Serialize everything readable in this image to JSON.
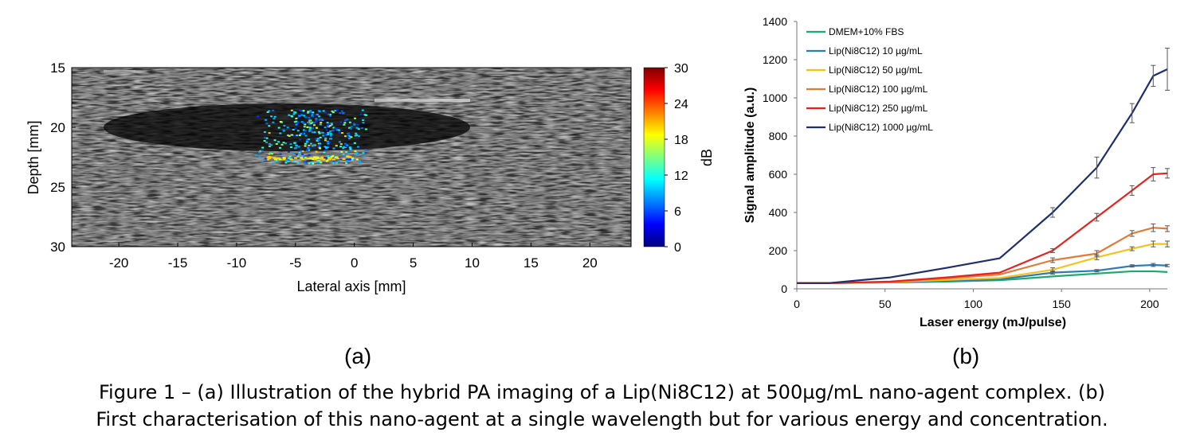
{
  "figure": {
    "panel_a_label": "(a)",
    "panel_b_label": "(b)",
    "caption_line1": "Figure 1 – (a) Illustration of the hybrid PA imaging of a Lip(Ni8C12) at 500µg/mL nano-agent complex. (b)",
    "caption_line2": "First characterisation of this nano-agent at a single wavelength but for various energy and concentration."
  },
  "chart_data": [
    {
      "type": "heatmap",
      "xlabel": "Lateral axis [mm]",
      "ylabel": "Depth [mm]",
      "xlim": [
        -24,
        23.5
      ],
      "ylim": [
        30,
        15
      ],
      "xticks": [
        -20,
        -15,
        -10,
        -5,
        0,
        5,
        10,
        15,
        20
      ],
      "yticks": [
        15,
        20,
        25,
        30
      ],
      "colorbar": {
        "label": "dB",
        "ticks": [
          0,
          6,
          12,
          18,
          24,
          30
        ],
        "range": [
          0,
          30
        ]
      },
      "background": "grayscale ultrasound B-mode speckle",
      "hotspot": {
        "x_range": [
          -8.5,
          1
        ],
        "y_range": [
          18.5,
          23
        ],
        "peak_db": 21
      }
    },
    {
      "type": "line",
      "xlabel": "Laser energy (mJ/pulse)",
      "ylabel": "Signal amplitude (a.u.)",
      "xlim": [
        0,
        210
      ],
      "ylim": [
        0,
        1400
      ],
      "xticks": [
        0,
        50,
        100,
        150,
        200
      ],
      "yticks": [
        0,
        200,
        400,
        600,
        800,
        1000,
        1200,
        1400
      ],
      "legend_position": "top-left",
      "x": [
        0,
        18,
        53,
        85,
        115,
        145,
        170,
        190,
        202,
        210
      ],
      "series": [
        {
          "name": "DMEM+10% FBS",
          "color": "#1daa6b",
          "values": [
            30,
            30,
            33,
            38,
            45,
            65,
            80,
            92,
            92,
            88
          ],
          "err": []
        },
        {
          "name": "Lip(Ni8C12) 10 µg/mL",
          "color": "#2b7bba",
          "values": [
            30,
            30,
            34,
            42,
            50,
            85,
            95,
            120,
            125,
            122
          ],
          "err": [
            0,
            0,
            0,
            0,
            0,
            8,
            6,
            6,
            8,
            6
          ]
        },
        {
          "name": "Lip(Ni8C12) 50 µg/mL",
          "color": "#f6c21a",
          "values": [
            30,
            30,
            35,
            47,
            57,
            100,
            165,
            210,
            235,
            235
          ],
          "err": [
            0,
            0,
            0,
            0,
            0,
            10,
            12,
            10,
            15,
            15
          ]
        },
        {
          "name": "Lip(Ni8C12) 100 µg/mL",
          "color": "#e07b39",
          "values": [
            30,
            30,
            36,
            55,
            75,
            150,
            185,
            290,
            320,
            315
          ],
          "err": [
            0,
            0,
            0,
            0,
            0,
            12,
            15,
            15,
            20,
            15
          ]
        },
        {
          "name": "Lip(Ni8C12) 250 µg/mL",
          "color": "#e8231f",
          "values": [
            30,
            30,
            38,
            60,
            85,
            200,
            375,
            515,
            600,
            605
          ],
          "err": [
            0,
            0,
            0,
            0,
            0,
            10,
            20,
            25,
            35,
            25
          ]
        },
        {
          "name": "Lip(Ni8C12) 1000 µg/mL",
          "color": "#1f2e6e",
          "values": [
            30,
            30,
            60,
            110,
            160,
            400,
            635,
            920,
            1115,
            1150
          ],
          "err": [
            0,
            0,
            0,
            0,
            0,
            25,
            55,
            50,
            55,
            110
          ]
        }
      ]
    }
  ]
}
